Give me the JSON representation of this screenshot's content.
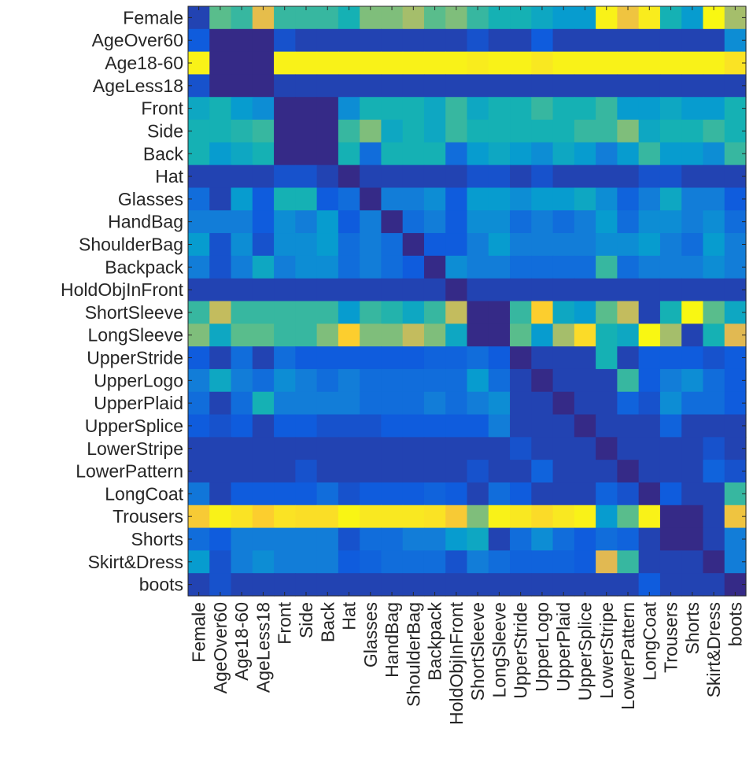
{
  "chart_data": {
    "type": "heatmap",
    "title": "",
    "xlabel": "",
    "ylabel": "",
    "labels": [
      "Female",
      "AgeOver60",
      "Age18-60",
      "AgeLess18",
      "Front",
      "Side",
      "Back",
      "Hat",
      "Glasses",
      "HandBag",
      "ShoulderBag",
      "Backpack",
      "HoldObjInFront",
      "ShortSleeve",
      "LongSleeve",
      "UpperStride",
      "UpperLogo",
      "UpperPlaid",
      "UpperSplice",
      "LowerStripe",
      "LowerPattern",
      "LongCoat",
      "Trousers",
      "Shorts",
      "Skirt&Dress",
      "boots"
    ],
    "y_labels": [
      "Female",
      "AgeOver60",
      "Age18-60",
      "AgeLess18",
      "Front",
      "Side",
      "Back",
      "Hat",
      "Glasses",
      "HandBag",
      "ShoulderBag",
      "Backpack",
      "HoldObjInFront",
      "ShortSleeve",
      "LongSleeve",
      "UpperStride",
      "UpperLogo",
      "UpperPlaid",
      "UpperSplice",
      "LowerStripe",
      "LowerPattern",
      "LongCoat",
      "Trousers",
      "Shorts",
      "Skirt&Dress",
      "boots"
    ],
    "x_labels": [
      "Female",
      "AgeOver60",
      "Age18-60",
      "AgeLess18",
      "Front",
      "Side",
      "Back",
      "Hat",
      "Glasses",
      "HandBag",
      "ShoulderBag",
      "Backpack",
      "HoldObjInFront",
      "ShortSleeve",
      "LongSleeve",
      "UpperStride",
      "UpperLogo",
      "UpperPlaid",
      "UpperSplice",
      "LowerStripe",
      "LowerPattern",
      "LongCoat",
      "Trousers",
      "Shorts",
      "Skirt&Dress",
      "boots"
    ],
    "colormap": "parula",
    "value_range": [
      0,
      1
    ],
    "grid": false,
    "values": [
      [
        0.05,
        0.5,
        0.45,
        0.72,
        0.45,
        0.45,
        0.45,
        0.4,
        0.55,
        0.55,
        0.6,
        0.5,
        0.55,
        0.45,
        0.4,
        0.4,
        0.35,
        0.3,
        0.3,
        0.95,
        0.75,
        0.92,
        0.4,
        0.3,
        0.98,
        0.6
      ],
      [
        0.1,
        0.0,
        0.0,
        0.0,
        0.08,
        0.05,
        0.05,
        0.05,
        0.05,
        0.05,
        0.05,
        0.05,
        0.05,
        0.08,
        0.05,
        0.05,
        0.1,
        0.05,
        0.05,
        0.05,
        0.05,
        0.05,
        0.05,
        0.05,
        0.05,
        0.25
      ],
      [
        0.95,
        0.0,
        0.0,
        0.0,
        0.95,
        0.95,
        0.95,
        0.95,
        0.95,
        0.95,
        0.95,
        0.95,
        0.95,
        0.92,
        0.95,
        0.95,
        0.9,
        0.95,
        0.95,
        0.95,
        0.95,
        0.95,
        0.95,
        0.95,
        0.95,
        0.88
      ],
      [
        0.08,
        0.0,
        0.0,
        0.0,
        0.05,
        0.05,
        0.05,
        0.05,
        0.05,
        0.05,
        0.05,
        0.05,
        0.05,
        0.05,
        0.05,
        0.05,
        0.05,
        0.05,
        0.05,
        0.05,
        0.05,
        0.05,
        0.05,
        0.05,
        0.05,
        0.05
      ],
      [
        0.35,
        0.4,
        0.3,
        0.25,
        0.0,
        0.0,
        0.0,
        0.25,
        0.4,
        0.4,
        0.4,
        0.35,
        0.45,
        0.35,
        0.4,
        0.4,
        0.45,
        0.4,
        0.4,
        0.45,
        0.3,
        0.3,
        0.35,
        0.3,
        0.3,
        0.4
      ],
      [
        0.4,
        0.4,
        0.42,
        0.45,
        0.0,
        0.0,
        0.0,
        0.45,
        0.55,
        0.35,
        0.4,
        0.35,
        0.45,
        0.4,
        0.4,
        0.4,
        0.4,
        0.4,
        0.45,
        0.45,
        0.55,
        0.35,
        0.4,
        0.4,
        0.45,
        0.4
      ],
      [
        0.4,
        0.3,
        0.35,
        0.4,
        0.0,
        0.0,
        0.0,
        0.4,
        0.15,
        0.4,
        0.4,
        0.4,
        0.15,
        0.3,
        0.35,
        0.3,
        0.25,
        0.35,
        0.3,
        0.2,
        0.3,
        0.45,
        0.3,
        0.3,
        0.25,
        0.45
      ],
      [
        0.05,
        0.05,
        0.05,
        0.05,
        0.08,
        0.08,
        0.05,
        0.0,
        0.05,
        0.05,
        0.05,
        0.05,
        0.05,
        0.08,
        0.08,
        0.05,
        0.08,
        0.05,
        0.05,
        0.05,
        0.05,
        0.08,
        0.08,
        0.05,
        0.05,
        0.05
      ],
      [
        0.15,
        0.05,
        0.3,
        0.1,
        0.4,
        0.4,
        0.1,
        0.15,
        0.0,
        0.2,
        0.2,
        0.25,
        0.1,
        0.3,
        0.3,
        0.25,
        0.3,
        0.3,
        0.35,
        0.25,
        0.12,
        0.2,
        0.35,
        0.2,
        0.2,
        0.1
      ],
      [
        0.2,
        0.2,
        0.2,
        0.1,
        0.25,
        0.2,
        0.3,
        0.1,
        0.2,
        0.0,
        0.15,
        0.2,
        0.1,
        0.25,
        0.25,
        0.15,
        0.2,
        0.15,
        0.2,
        0.3,
        0.15,
        0.25,
        0.25,
        0.2,
        0.25,
        0.15
      ],
      [
        0.3,
        0.08,
        0.25,
        0.08,
        0.25,
        0.25,
        0.3,
        0.15,
        0.2,
        0.15,
        0.0,
        0.1,
        0.1,
        0.2,
        0.3,
        0.2,
        0.2,
        0.2,
        0.2,
        0.25,
        0.25,
        0.3,
        0.2,
        0.15,
        0.3,
        0.2
      ],
      [
        0.2,
        0.08,
        0.2,
        0.35,
        0.2,
        0.25,
        0.25,
        0.15,
        0.2,
        0.15,
        0.1,
        0.0,
        0.25,
        0.2,
        0.2,
        0.15,
        0.15,
        0.15,
        0.15,
        0.45,
        0.15,
        0.2,
        0.2,
        0.2,
        0.25,
        0.2
      ],
      [
        0.05,
        0.05,
        0.05,
        0.05,
        0.05,
        0.05,
        0.05,
        0.05,
        0.05,
        0.05,
        0.05,
        0.05,
        0.0,
        0.05,
        0.05,
        0.05,
        0.05,
        0.05,
        0.05,
        0.05,
        0.05,
        0.05,
        0.05,
        0.05,
        0.05,
        0.05
      ],
      [
        0.45,
        0.65,
        0.45,
        0.45,
        0.45,
        0.45,
        0.45,
        0.3,
        0.45,
        0.42,
        0.35,
        0.45,
        0.65,
        0.0,
        0.0,
        0.45,
        0.8,
        0.35,
        0.3,
        0.5,
        0.65,
        0.05,
        0.4,
        0.98,
        0.5,
        0.35
      ],
      [
        0.55,
        0.35,
        0.5,
        0.5,
        0.45,
        0.45,
        0.55,
        0.8,
        0.55,
        0.55,
        0.65,
        0.55,
        0.35,
        0.0,
        0.0,
        0.5,
        0.3,
        0.6,
        0.85,
        0.4,
        0.35,
        0.98,
        0.6,
        0.05,
        0.4,
        0.7
      ],
      [
        0.1,
        0.05,
        0.15,
        0.05,
        0.15,
        0.1,
        0.1,
        0.1,
        0.1,
        0.1,
        0.1,
        0.12,
        0.12,
        0.15,
        0.1,
        0.0,
        0.05,
        0.05,
        0.05,
        0.4,
        0.05,
        0.1,
        0.1,
        0.1,
        0.08,
        0.1
      ],
      [
        0.2,
        0.35,
        0.2,
        0.15,
        0.25,
        0.2,
        0.15,
        0.2,
        0.15,
        0.15,
        0.15,
        0.15,
        0.15,
        0.3,
        0.15,
        0.05,
        0.0,
        0.05,
        0.05,
        0.05,
        0.45,
        0.1,
        0.2,
        0.25,
        0.15,
        0.1
      ],
      [
        0.15,
        0.05,
        0.15,
        0.4,
        0.2,
        0.2,
        0.2,
        0.2,
        0.15,
        0.15,
        0.15,
        0.2,
        0.15,
        0.2,
        0.25,
        0.05,
        0.05,
        0.0,
        0.05,
        0.05,
        0.12,
        0.08,
        0.25,
        0.15,
        0.15,
        0.1
      ],
      [
        0.1,
        0.08,
        0.1,
        0.05,
        0.1,
        0.1,
        0.08,
        0.08,
        0.08,
        0.1,
        0.1,
        0.1,
        0.1,
        0.1,
        0.2,
        0.05,
        0.05,
        0.05,
        0.0,
        0.05,
        0.05,
        0.05,
        0.12,
        0.05,
        0.05,
        0.05
      ],
      [
        0.05,
        0.05,
        0.05,
        0.05,
        0.05,
        0.05,
        0.05,
        0.05,
        0.05,
        0.05,
        0.05,
        0.05,
        0.05,
        0.05,
        0.05,
        0.08,
        0.05,
        0.05,
        0.05,
        0.0,
        0.05,
        0.05,
        0.05,
        0.05,
        0.08,
        0.05
      ],
      [
        0.05,
        0.05,
        0.05,
        0.05,
        0.05,
        0.08,
        0.05,
        0.05,
        0.05,
        0.05,
        0.05,
        0.05,
        0.05,
        0.08,
        0.05,
        0.05,
        0.12,
        0.05,
        0.05,
        0.05,
        0.0,
        0.05,
        0.05,
        0.05,
        0.12,
        0.08
      ],
      [
        0.18,
        0.05,
        0.1,
        0.1,
        0.1,
        0.1,
        0.15,
        0.08,
        0.1,
        0.1,
        0.1,
        0.12,
        0.1,
        0.05,
        0.15,
        0.1,
        0.05,
        0.05,
        0.05,
        0.12,
        0.08,
        0.0,
        0.1,
        0.05,
        0.05,
        0.45
      ],
      [
        0.78,
        0.95,
        0.88,
        0.8,
        0.88,
        0.86,
        0.86,
        0.97,
        0.9,
        0.9,
        0.9,
        0.88,
        0.78,
        0.55,
        0.95,
        0.9,
        0.85,
        0.9,
        0.95,
        0.3,
        0.5,
        0.95,
        0.0,
        0.0,
        0.05,
        0.75
      ],
      [
        0.15,
        0.1,
        0.2,
        0.2,
        0.2,
        0.2,
        0.2,
        0.08,
        0.15,
        0.15,
        0.2,
        0.2,
        0.3,
        0.35,
        0.05,
        0.15,
        0.25,
        0.15,
        0.1,
        0.15,
        0.12,
        0.05,
        0.0,
        0.0,
        0.05,
        0.2
      ],
      [
        0.3,
        0.08,
        0.2,
        0.25,
        0.2,
        0.2,
        0.2,
        0.1,
        0.12,
        0.15,
        0.15,
        0.15,
        0.08,
        0.2,
        0.15,
        0.12,
        0.12,
        0.12,
        0.1,
        0.7,
        0.45,
        0.05,
        0.05,
        0.05,
        0.0,
        0.2
      ],
      [
        0.05,
        0.08,
        0.05,
        0.05,
        0.05,
        0.05,
        0.05,
        0.05,
        0.05,
        0.05,
        0.05,
        0.05,
        0.05,
        0.05,
        0.05,
        0.05,
        0.05,
        0.05,
        0.05,
        0.05,
        0.05,
        0.1,
        0.05,
        0.05,
        0.05,
        0.0
      ]
    ]
  }
}
